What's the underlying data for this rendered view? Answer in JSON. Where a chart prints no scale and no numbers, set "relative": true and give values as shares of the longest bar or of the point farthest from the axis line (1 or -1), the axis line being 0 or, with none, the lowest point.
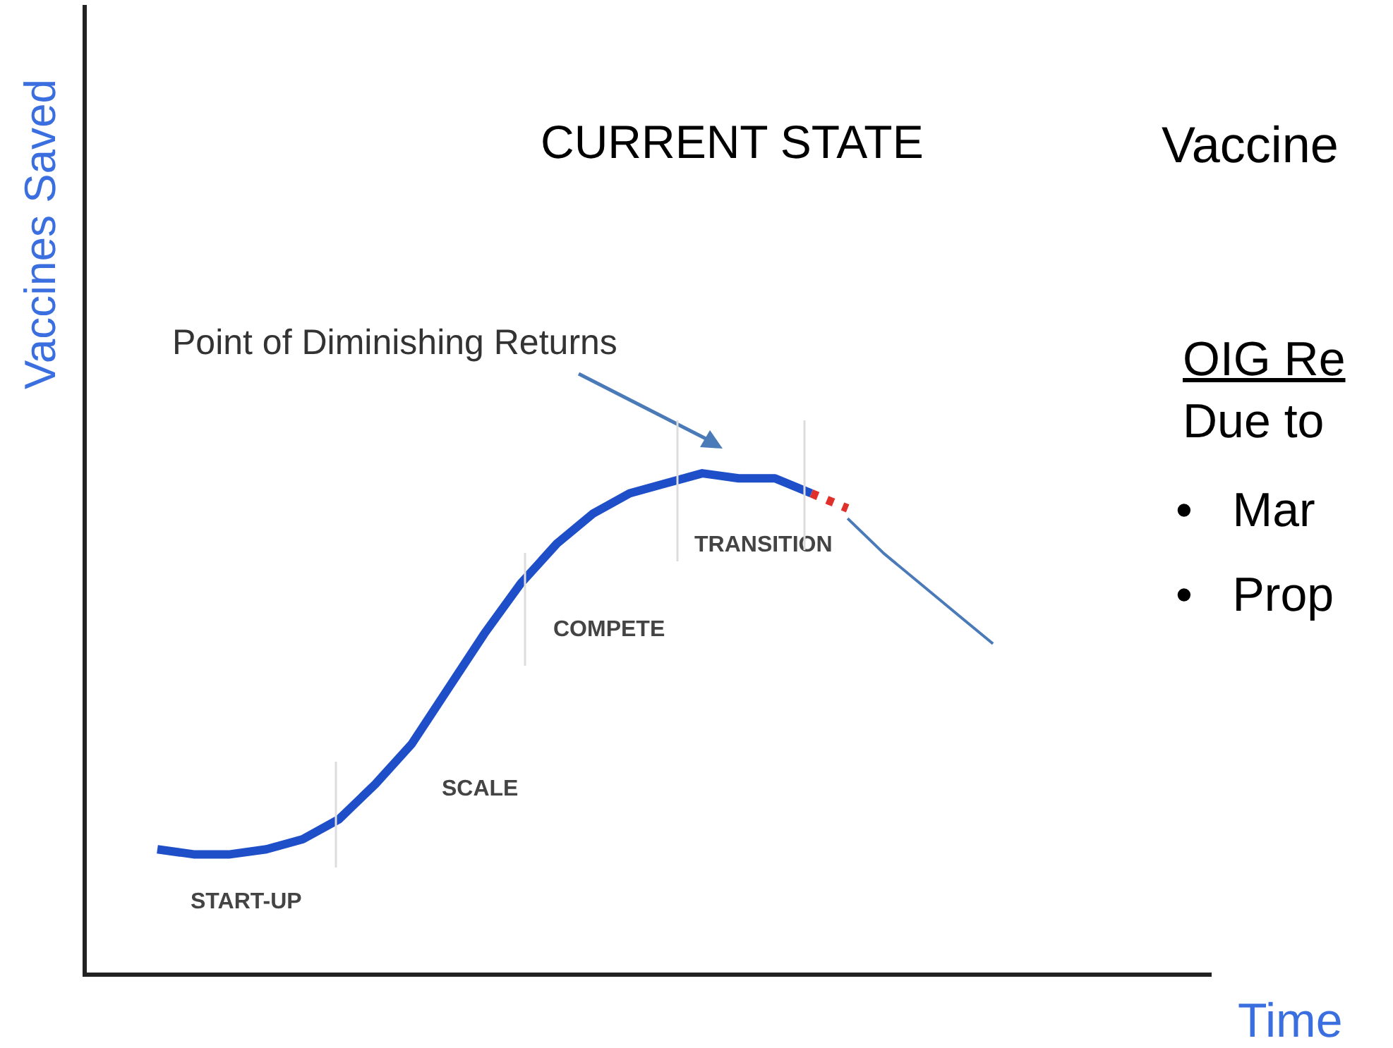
{
  "chart_data": {
    "type": "line",
    "relative": true,
    "title": "CURRENT STATE",
    "xlabel": "Time",
    "ylabel": "Vaccines Saved",
    "categories": [
      null,
      null,
      null,
      null,
      null,
      null,
      null,
      null,
      null,
      null,
      null,
      null,
      null,
      null,
      null,
      null,
      null,
      null,
      null,
      null,
      null,
      null,
      null,
      null,
      null,
      null,
      null,
      null,
      null,
      null,
      null,
      null
    ],
    "series": [
      {
        "color": "#1f4fc8",
        "line_style": "solid",
        "values": [
          null,
          null,
          0.25,
          0.24,
          0.24,
          0.25,
          0.27,
          0.31,
          0.38,
          0.46,
          0.57,
          0.68,
          0.78,
          0.86,
          0.92,
          0.96,
          0.98,
          1,
          0.99,
          0.99,
          0.96,
          null,
          null,
          null,
          null,
          null,
          null,
          null,
          null,
          null,
          null,
          null
        ]
      },
      {
        "color": "#e0302a",
        "line_style": "dotted",
        "values": [
          null,
          null,
          null,
          null,
          null,
          null,
          null,
          null,
          null,
          null,
          null,
          null,
          null,
          null,
          null,
          null,
          null,
          null,
          null,
          null,
          0.96,
          0.93,
          null,
          null,
          null,
          null,
          null,
          null,
          null,
          null,
          null,
          null
        ]
      },
      {
        "color": "#4a7ab8",
        "line_style": "solid",
        "values": [
          null,
          null,
          null,
          null,
          null,
          null,
          null,
          null,
          null,
          null,
          null,
          null,
          null,
          null,
          null,
          null,
          null,
          null,
          null,
          null,
          null,
          0.91,
          0.84,
          0.78,
          0.72,
          0.66,
          null,
          null,
          null,
          null,
          null,
          null
        ]
      }
    ],
    "marker": "none",
    "grid": false,
    "legend": false,
    "annotations": [
      "Point of Diminishing Returns",
      "START-UP",
      "SCALE",
      "COMPETE",
      "TRANSITION",
      "Vaccine",
      "OIG Re",
      "Due to",
      "•   Mar",
      "•   Prop"
    ]
  }
}
